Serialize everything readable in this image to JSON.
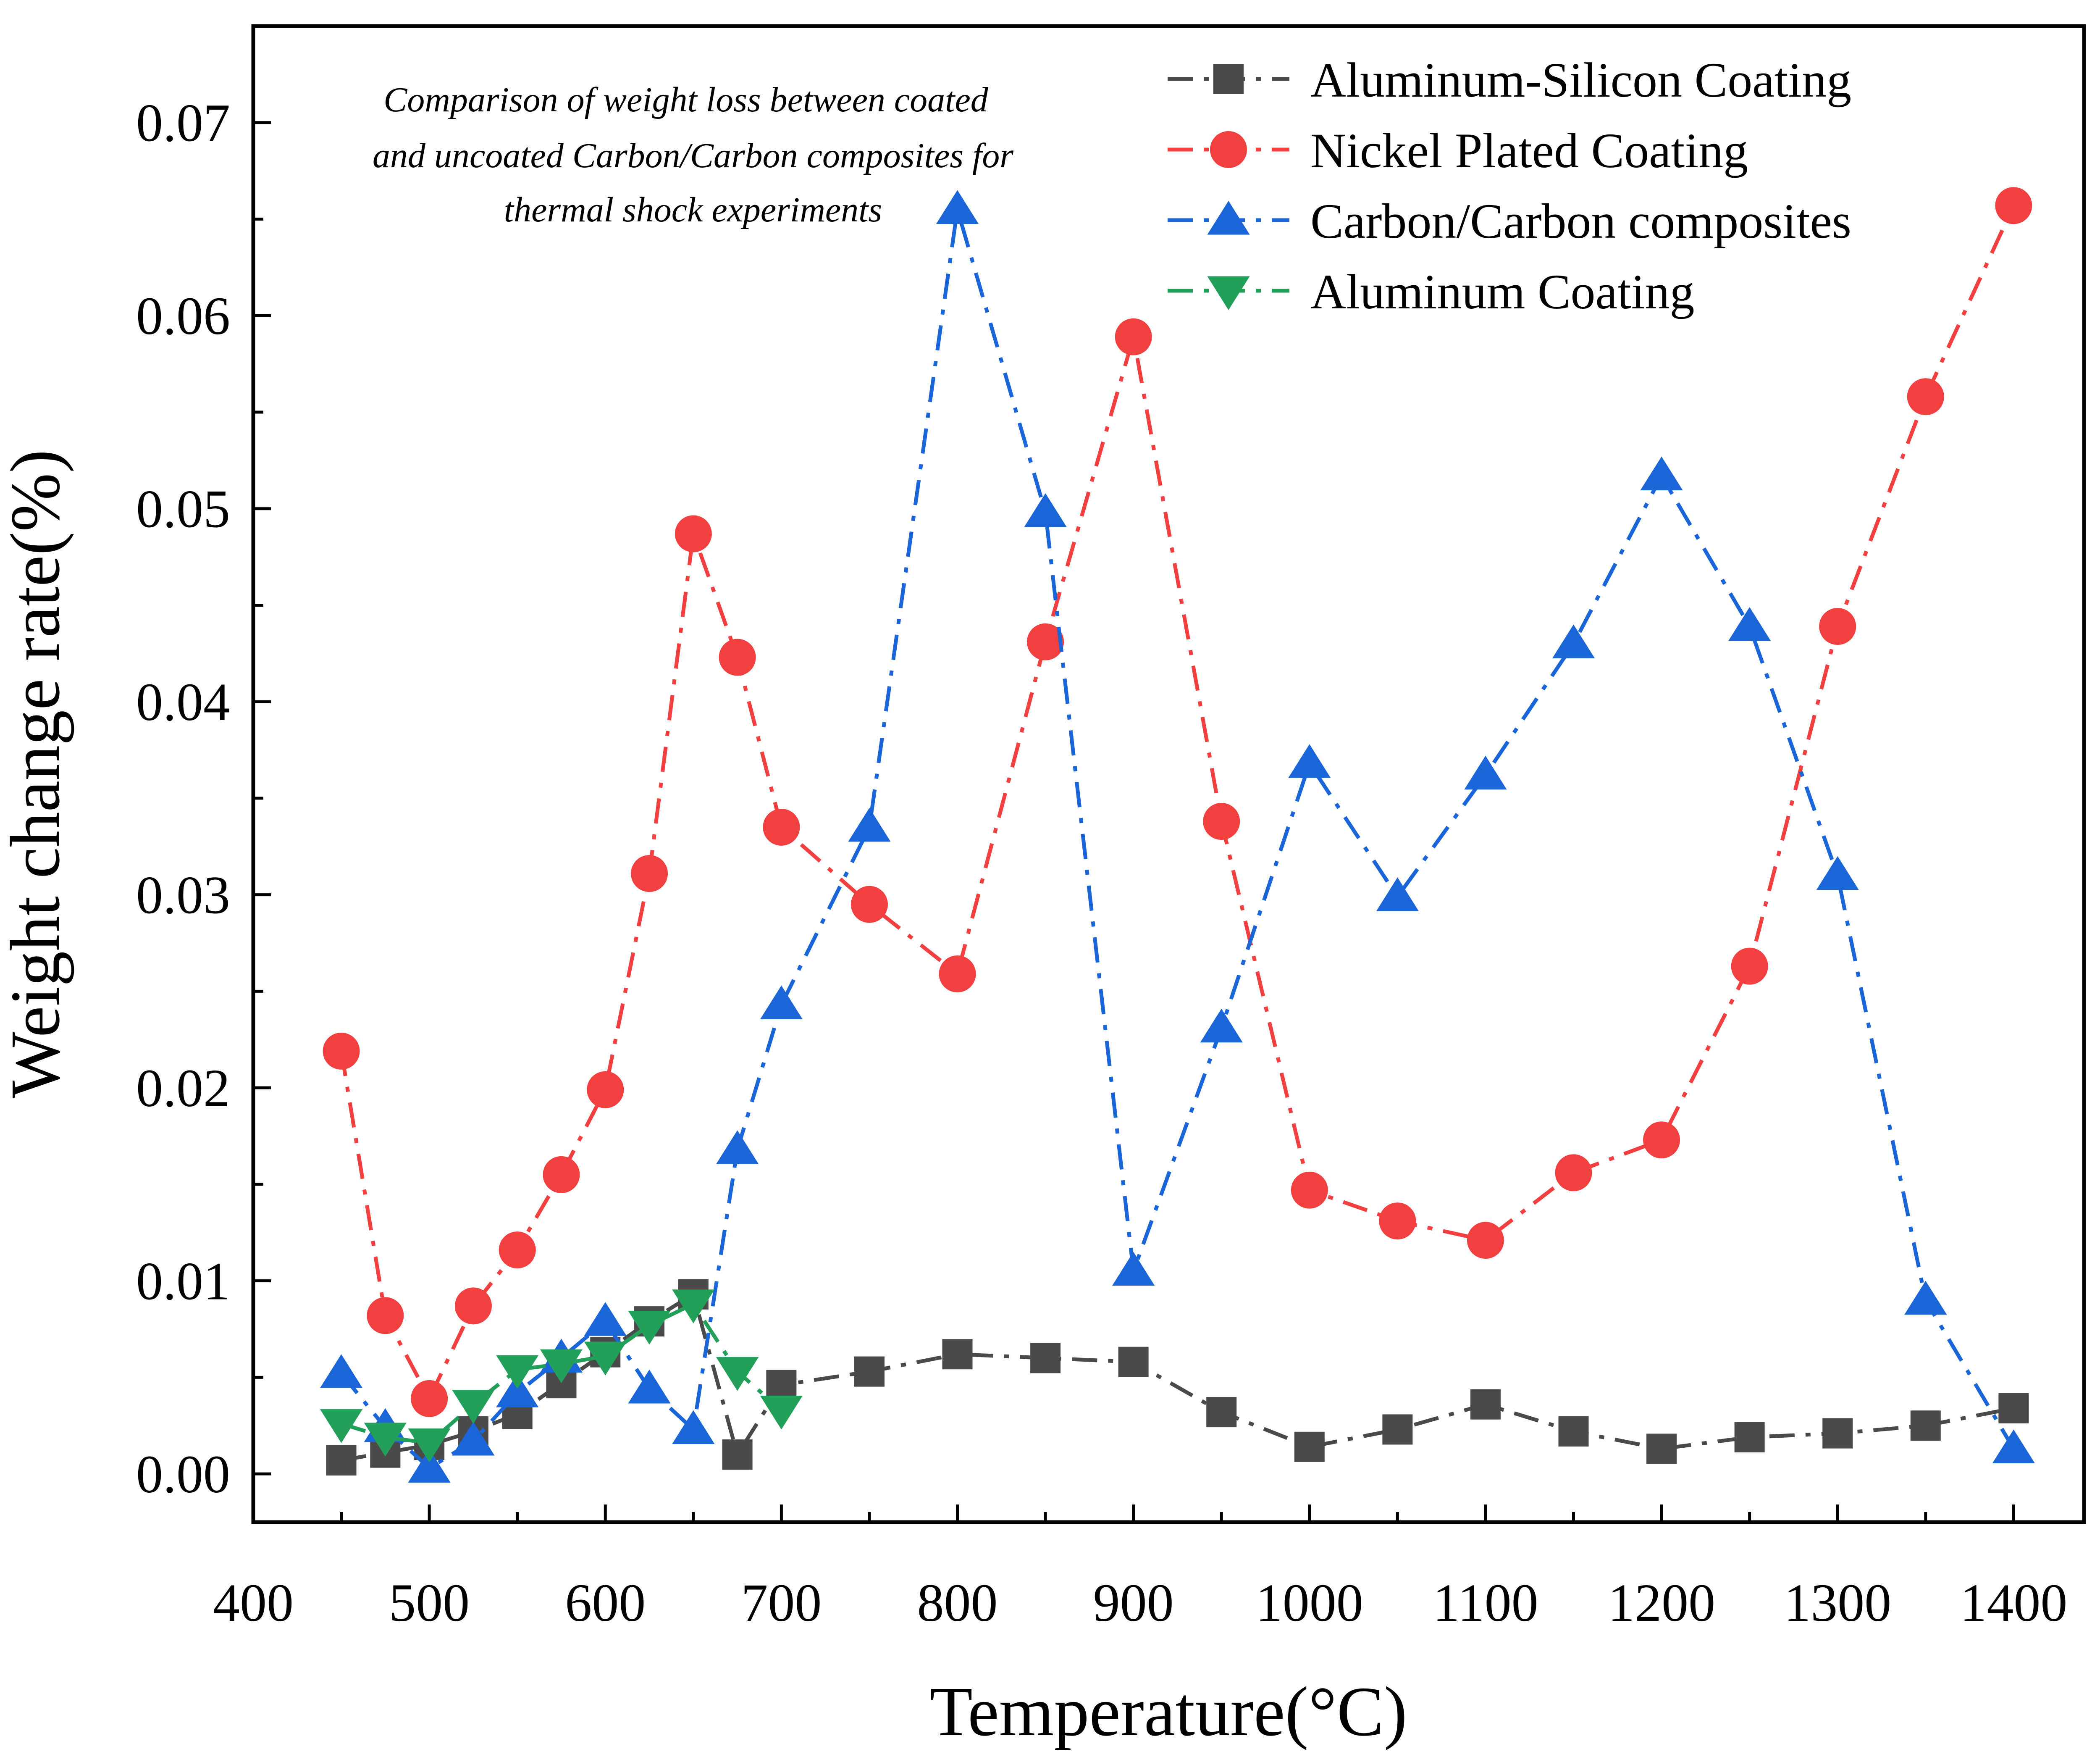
{
  "chart_data": {
    "type": "line",
    "title": "",
    "xlabel": "Temperature(°C)",
    "ylabel": "Weight change rate(%)",
    "xlim": [
      400,
      1440
    ],
    "ylim": [
      -0.0025,
      0.075
    ],
    "xticks": [
      400,
      500,
      600,
      700,
      800,
      900,
      1000,
      1100,
      1200,
      1300,
      1400
    ],
    "xtick_labels": [
      "400",
      "500",
      "600",
      "700",
      "800",
      "900",
      "1000",
      "1100",
      "1200",
      "1300",
      "1400"
    ],
    "yticks": [
      0,
      0.01,
      0.02,
      0.03,
      0.04,
      0.05,
      0.06,
      0.07
    ],
    "ytick_labels": [
      "0.00",
      "0.01",
      "0.02",
      "0.03",
      "0.04",
      "0.05",
      "0.06",
      "0.07"
    ],
    "grid": false,
    "legend_position": "top-right",
    "annotation": [
      "Comparison of weight loss between coated",
      "and uncoated Carbon/Carbon composites for",
      "thermal shock experiments"
    ],
    "series": [
      {
        "name": "Aluminum-Silicon Coating",
        "color": "#4a4a4a",
        "marker": "square",
        "dash": "dash-dot",
        "x": [
          450,
          475,
          500,
          525,
          550,
          575,
          600,
          625,
          650,
          675,
          700,
          750,
          800,
          850,
          900,
          950,
          1000,
          1050,
          1100,
          1150,
          1200,
          1250,
          1300,
          1350,
          1400
        ],
        "y": [
          0.0007,
          0.0011,
          0.0015,
          0.0022,
          0.0031,
          0.0047,
          0.0063,
          0.0079,
          0.0093,
          0.001,
          0.0046,
          0.0053,
          0.0062,
          0.006,
          0.0058,
          0.0032,
          0.0014,
          0.0023,
          0.0036,
          0.0022,
          0.0013,
          0.0019,
          0.0021,
          0.0025,
          0.0034
        ]
      },
      {
        "name": "Nickel Plated Coating",
        "color": "#f23f3f",
        "marker": "circle",
        "dash": "dash-dot",
        "x": [
          450,
          475,
          500,
          525,
          550,
          575,
          600,
          625,
          650,
          675,
          700,
          750,
          800,
          850,
          900,
          950,
          1000,
          1050,
          1100,
          1150,
          1200,
          1250,
          1300,
          1350,
          1400
        ],
        "y": [
          0.0219,
          0.0082,
          0.0039,
          0.0087,
          0.0116,
          0.0155,
          0.0199,
          0.0311,
          0.0487,
          0.0423,
          0.0335,
          0.0295,
          0.0259,
          0.0431,
          0.0589,
          0.0338,
          0.0147,
          0.0131,
          0.0121,
          0.0156,
          0.0173,
          0.0263,
          0.0439,
          0.0558,
          0.0657
        ]
      },
      {
        "name": "Carbon/Carbon composites",
        "color": "#1a66d9",
        "marker": "triangle-up",
        "dash": "dash-dot",
        "x": [
          450,
          475,
          500,
          525,
          550,
          575,
          600,
          625,
          650,
          675,
          700,
          750,
          800,
          850,
          900,
          950,
          1000,
          1050,
          1100,
          1150,
          1200,
          1250,
          1300,
          1350,
          1400
        ],
        "y": [
          0.0052,
          0.0024,
          0.0003,
          0.0017,
          0.0042,
          0.006,
          0.0079,
          0.0044,
          0.0023,
          0.0168,
          0.0243,
          0.0335,
          0.0655,
          0.0498,
          0.0105,
          0.0231,
          0.0368,
          0.0299,
          0.0362,
          0.043,
          0.0517,
          0.0439,
          0.031,
          0.009,
          0.0013
        ]
      },
      {
        "name": "Aluminum Coating",
        "color": "#22a05a",
        "marker": "triangle-down",
        "dash": "dash-dot",
        "x": [
          450,
          475,
          500,
          525,
          550,
          575,
          600,
          625,
          650,
          675,
          700
        ],
        "y": [
          0.0026,
          0.0019,
          0.0016,
          0.0036,
          0.0054,
          0.0057,
          0.0061,
          0.0077,
          0.0088,
          0.0053,
          0.0033
        ]
      }
    ]
  }
}
